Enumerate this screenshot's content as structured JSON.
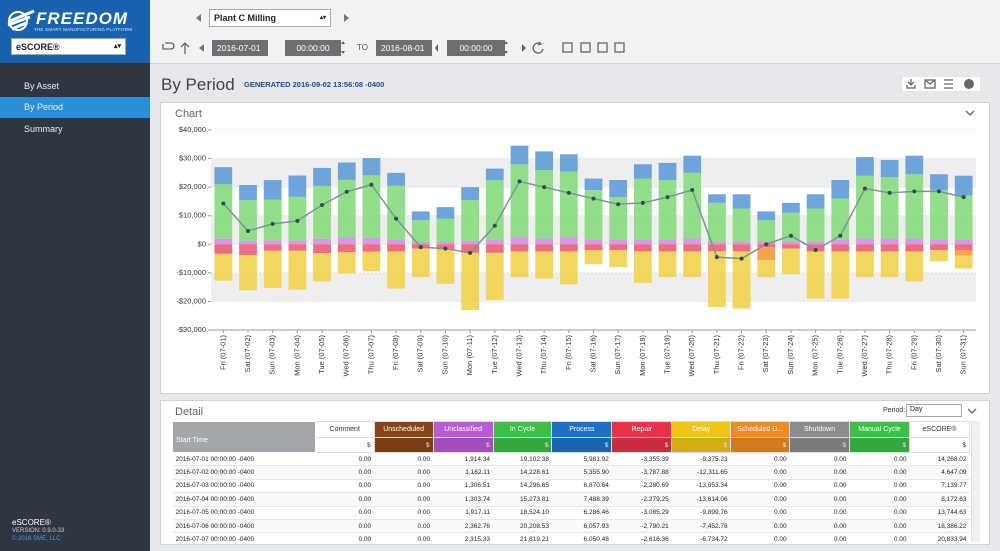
{
  "sidebar": {
    "logo": "FREEDOM",
    "tagline": "THE SMART MANUFACTURING PLATFORM",
    "app_select": "eSCORE®",
    "nav": [
      "By Asset",
      "By Period",
      "Summary"
    ],
    "footer": [
      "eSCORE®",
      "VERSION: 0.9.0-33",
      "© 2016 SME, LLC"
    ]
  },
  "toolbar": {
    "plant": "Plant C Milling",
    "start_date": "2016-07-01",
    "start_time": "00:00:00",
    "to": "TO",
    "end_date": "2016-08-01",
    "end_time": "00:00:00"
  },
  "header": {
    "title": "By Period",
    "generated": "GENERATED 2016-09-02 13:56:08 -0400"
  },
  "chart_data": {
    "type": "bar",
    "stacked": true,
    "title": "Chart",
    "categories": [
      "Fri (07-01)",
      "Sat (07-02)",
      "Sun (07-03)",
      "Mon (07-04)",
      "Tue (07-05)",
      "Wed (07-06)",
      "Thu (07-07)",
      "Fri (07-08)",
      "Sat (07-09)",
      "Sun (07-10)",
      "Mon (07-11)",
      "Tue (07-12)",
      "Wed (07-13)",
      "Thu (07-14)",
      "Fri (07-15)",
      "Sat (07-16)",
      "Sun (07-17)",
      "Mon (07-18)",
      "Tue (07-19)",
      "Wed (07-20)",
      "Thu (07-21)",
      "Fri (07-22)",
      "Sat (07-23)",
      "Sun (07-24)",
      "Mon (07-25)",
      "Tue (07-26)",
      "Wed (07-27)",
      "Thu (07-28)",
      "Fri (07-29)",
      "Sat (07-30)",
      "Sun (07-31)"
    ],
    "series": [
      {
        "color": "#d48ee6",
        "values": [
          1914.34,
          1162.11,
          1306.51,
          1303.74,
          1917.11,
          2362.76,
          2315.33,
          1500,
          800,
          800,
          1200,
          1500,
          2500,
          2000,
          2500,
          1500,
          1500,
          1500,
          1500,
          2000,
          1000,
          1000,
          800,
          1000,
          1000,
          1500,
          2000,
          2000,
          2000,
          1500,
          1500
        ]
      },
      {
        "color": "#86da7e",
        "values": [
          19102.38,
          14228.61,
          14296.65,
          15273.81,
          18524.1,
          20208.53,
          21819.21,
          19000,
          7700,
          8200,
          14300,
          21000,
          25500,
          24000,
          23000,
          17500,
          15000,
          21500,
          21000,
          23000,
          13500,
          11500,
          7700,
          10000,
          11500,
          14500,
          22000,
          21500,
          22500,
          17500,
          15500
        ]
      },
      {
        "color": "#5f9bd8",
        "values": [
          5981.92,
          5355.9,
          6870.64,
          7488.39,
          6286.46,
          6057.93,
          6050.48,
          4500,
          3000,
          4000,
          4500,
          4000,
          6500,
          6500,
          6000,
          4000,
          6000,
          5000,
          6000,
          6000,
          3000,
          5000,
          3000,
          3500,
          5000,
          6500,
          6500,
          6000,
          6500,
          5500,
          7000
        ]
      },
      {
        "color": "#ec5d78",
        "values": [
          -3355.39,
          -3787.88,
          -2280.69,
          -2279.25,
          -3085.29,
          -2790.21,
          -2616.36,
          -2500,
          -1500,
          -1800,
          -3000,
          -3000,
          -2500,
          -2500,
          -2500,
          -2000,
          -2000,
          -2500,
          -2500,
          -2500,
          -2500,
          -2500,
          -1000,
          -1500,
          -2500,
          -2500,
          -2500,
          -2500,
          -2500,
          -2000,
          -2000
        ]
      },
      {
        "color": "#f39a3c",
        "values": [
          0,
          0,
          0,
          0,
          0,
          0,
          0,
          0,
          0,
          0,
          0,
          0,
          0,
          0,
          0,
          0,
          0,
          0,
          0,
          0,
          0,
          0,
          -4500,
          0,
          0,
          0,
          0,
          0,
          0,
          0,
          -2000
        ]
      },
      {
        "color": "#f1d24e",
        "values": [
          -9375.23,
          -12311.65,
          -13053.34,
          -13614.06,
          -9899.76,
          -7452.78,
          -6734.72,
          -13000,
          -10000,
          -12000,
          -20000,
          -16500,
          -9000,
          -9500,
          -11500,
          -5000,
          -6000,
          -11000,
          -9000,
          -9000,
          -19500,
          -20000,
          -6000,
          -9000,
          -16500,
          -16500,
          -9000,
          -9000,
          -10500,
          -4000,
          -4500
        ]
      },
      {
        "type": "line",
        "color": "#7e9494",
        "marker_color": "#2f4f4f",
        "values": [
          14268.02,
          4647.09,
          7139.77,
          8172.63,
          13744.63,
          18386.22,
          20833.94,
          9000,
          -1000,
          -1500,
          -3000,
          6500,
          22000,
          20000,
          18000,
          16000,
          14000,
          14500,
          16500,
          19000,
          -4500,
          -5000,
          0,
          3000,
          -2000,
          3000,
          19500,
          18000,
          18500,
          18500,
          16500
        ]
      }
    ],
    "ylim": [
      -30000,
      40000
    ],
    "yticks": [
      {
        "value": -30000,
        "label": "-$30,000"
      },
      {
        "value": -20000,
        "label": "-$20,000"
      },
      {
        "value": -10000,
        "label": "-$10,000"
      },
      {
        "value": 0,
        "label": "$0"
      },
      {
        "value": 10000,
        "label": "$10,000"
      },
      {
        "value": 20000,
        "label": "$20,000"
      },
      {
        "value": 30000,
        "label": "$30,000"
      },
      {
        "value": 40000,
        "label": "$40,000"
      }
    ],
    "grid": true
  },
  "detail": {
    "title": "Detail",
    "period_label": "Period:",
    "period": "Day",
    "unit": "$",
    "columns": [
      {
        "label": "Start Time",
        "color": "#a3a7ab"
      },
      {
        "label": "Comment",
        "color": "#ffffff"
      },
      {
        "label": "Unscheduled",
        "color": "#8b4513"
      },
      {
        "label": "Unclassified",
        "color": "#b85ad6"
      },
      {
        "label": "In Cycle",
        "color": "#3cbf45"
      },
      {
        "label": "Process",
        "color": "#1f6fc9"
      },
      {
        "label": "Repair",
        "color": "#e83048"
      },
      {
        "label": "Delay",
        "color": "#f0c419"
      },
      {
        "label": "Scheduled D...",
        "color": "#f08a24"
      },
      {
        "label": "Shutdown",
        "color": "#8c8c8c"
      },
      {
        "label": "Manual Cycle",
        "color": "#3cbf45"
      },
      {
        "label": "eSCORE®",
        "color": "#ffffff"
      }
    ],
    "rows": [
      [
        "2016-07-01 00:00:00 -0400",
        "0.00",
        "0.00",
        "1,914.34",
        "19,102.38",
        "5,981.92",
        "-3,355.39",
        "-9,375.23",
        "0.00",
        "0.00",
        "0.00",
        "14,268.02"
      ],
      [
        "2016-07-02 00:00:00 -0400",
        "0.00",
        "0.00",
        "1,162.11",
        "14,228.61",
        "5,355.90",
        "-3,787.88",
        "-12,311.65",
        "0.00",
        "0.00",
        "0.00",
        "4,647.09"
      ],
      [
        "2016-07-03 00:00:00 -0400",
        "0.00",
        "0.00",
        "1,306.51",
        "14,296.65",
        "6,870.64",
        "-2,280.69",
        "-13,053.34",
        "0.00",
        "0.00",
        "0.00",
        "7,139.77"
      ],
      [
        "2016-07-04 00:00:00 -0400",
        "0.00",
        "0.00",
        "1,303.74",
        "15,273.81",
        "7,488.39",
        "-2,279.25",
        "-13,614.06",
        "0.00",
        "0.00",
        "0.00",
        "8,172.63"
      ],
      [
        "2016-07-05 00:00:00 -0400",
        "0.00",
        "0.00",
        "1,917.11",
        "18,524.10",
        "6,286.46",
        "-3,085.29",
        "-9,899.76",
        "0.00",
        "0.00",
        "0.00",
        "13,744.63"
      ],
      [
        "2016-07-06 00:00:00 -0400",
        "0.00",
        "0.00",
        "2,362.76",
        "20,208.53",
        "6,057.93",
        "-2,790.21",
        "-7,452.78",
        "0.00",
        "0.00",
        "0.00",
        "18,386.22"
      ],
      [
        "2016-07-07 00:00:00 -0400",
        "0.00",
        "0.00",
        "2,315.33",
        "21,819.21",
        "6,050.48",
        "-2,616.36",
        "-6,734.72",
        "0.00",
        "0.00",
        "0.00",
        "20,833.94"
      ]
    ]
  }
}
